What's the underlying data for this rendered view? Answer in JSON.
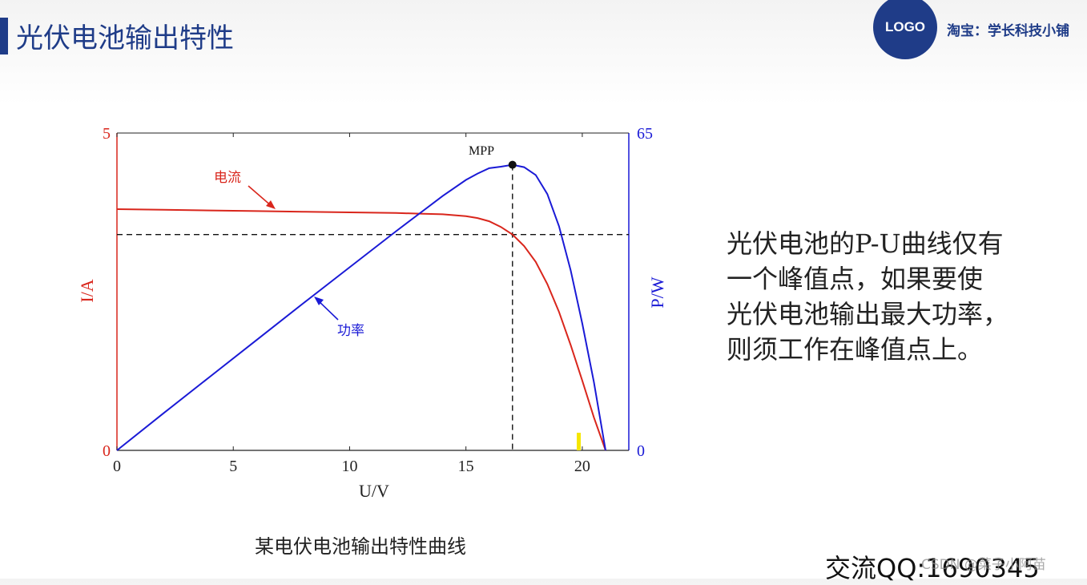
{
  "header": {
    "title": "光伏电池输出特性",
    "logo_text": "LOGO",
    "shop_text": "淘宝：学长科技小铺"
  },
  "chart_data": {
    "type": "line",
    "xlabel": "U/V",
    "ylabel_left": "I/A",
    "ylabel_right": "P/W",
    "xlim": [
      0,
      22
    ],
    "ylim_left": [
      0,
      5
    ],
    "ylim_right": [
      0,
      65
    ],
    "xticks": [
      "0",
      "5",
      "10",
      "15",
      "20"
    ],
    "yticks_left": [
      "0",
      "5"
    ],
    "yticks_right": [
      "0",
      "65"
    ],
    "series": [
      {
        "name": "电流",
        "axis": "left",
        "color": "#d9261c",
        "x": [
          0,
          2,
          4,
          6,
          8,
          10,
          12,
          13,
          14,
          15,
          15.5,
          16,
          16.5,
          17,
          17.5,
          18,
          18.5,
          19,
          19.5,
          20,
          20.5,
          21
        ],
        "y": [
          3.8,
          3.79,
          3.78,
          3.77,
          3.76,
          3.75,
          3.74,
          3.73,
          3.72,
          3.69,
          3.66,
          3.61,
          3.52,
          3.4,
          3.22,
          2.97,
          2.62,
          2.18,
          1.66,
          1.1,
          0.52,
          0
        ]
      },
      {
        "name": "功率",
        "axis": "right",
        "color": "#1a1ad6",
        "x": [
          0,
          2,
          4,
          6,
          8,
          10,
          12,
          13,
          14,
          15,
          15.5,
          16,
          16.5,
          17,
          17.5,
          18,
          18.5,
          19,
          19.5,
          20,
          20.5,
          21
        ],
        "y": [
          0,
          7.6,
          15.1,
          22.6,
          30.1,
          37.5,
          44.9,
          48.5,
          52.1,
          55.4,
          56.7,
          57.8,
          58.1,
          58.5,
          58.0,
          56.4,
          52.5,
          45.9,
          36.9,
          26.0,
          14.0,
          0
        ]
      }
    ],
    "annotations": {
      "mpp_label": "MPP",
      "mpp_x": 17,
      "mpp_power": 58.5,
      "mpp_current": 3.4,
      "current_label": "电流",
      "power_label": "功率"
    },
    "caption": "某电伏电池输出特性曲线"
  },
  "note": {
    "lines": [
      "光伏电池的P-U曲线仅有",
      "一个峰值点，如果要使",
      "光伏电池输出最大功率，",
      "则须工作在峰值点上。"
    ]
  },
  "footer": {
    "contact": "交流QQ:1690345",
    "watermark": "CSDN @菜子小阿苗"
  },
  "colors": {
    "brand": "#1f3c88",
    "current": "#d9261c",
    "power": "#1a1ad6",
    "marker_yellow": "#f5e600"
  }
}
